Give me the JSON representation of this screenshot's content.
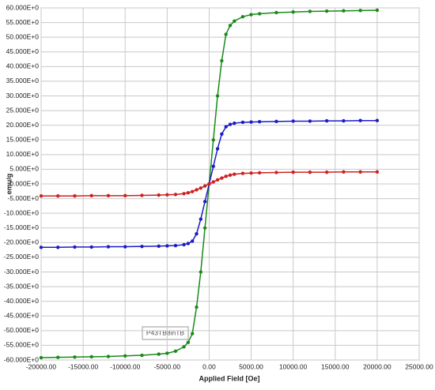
{
  "chart_data": {
    "type": "line",
    "xlabel": "Applied Field [Oe]",
    "ylabel": "emu/g",
    "annotation": "P43TB8inTB",
    "x": [
      -20000,
      -18000,
      -16000,
      -14000,
      -12000,
      -10000,
      -8000,
      -6000,
      -5000,
      -4000,
      -3000,
      -2500,
      -2000,
      -1500,
      -1000,
      -500,
      0,
      500,
      1000,
      1500,
      2000,
      2500,
      3000,
      4000,
      5000,
      6000,
      8000,
      10000,
      12000,
      14000,
      16000,
      18000,
      20000
    ],
    "series": [
      {
        "name": "green",
        "color": "#1a8a1a",
        "values": [
          -59.2,
          -59.1,
          -59.0,
          -58.9,
          -58.8,
          -58.6,
          -58.4,
          -58.0,
          -57.7,
          -57.0,
          -55.5,
          -54,
          -51,
          -42,
          -30,
          -15,
          0,
          15,
          30,
          42,
          51,
          54,
          55.5,
          57.0,
          57.7,
          58.0,
          58.4,
          58.6,
          58.8,
          58.9,
          59.0,
          59.1,
          59.2
        ]
      },
      {
        "name": "blue",
        "color": "#1c1cc8",
        "values": [
          -21.6,
          -21.6,
          -21.5,
          -21.5,
          -21.4,
          -21.4,
          -21.3,
          -21.2,
          -21.1,
          -21.0,
          -20.7,
          -20.3,
          -19.5,
          -17,
          -12,
          -6,
          0,
          6,
          12,
          17,
          19.5,
          20.3,
          20.7,
          21.0,
          21.1,
          21.2,
          21.3,
          21.4,
          21.4,
          21.5,
          21.5,
          21.6,
          21.6
        ]
      },
      {
        "name": "red",
        "color": "#d02020",
        "values": [
          -4.1,
          -4.1,
          -4.1,
          -4.0,
          -4.0,
          -4.0,
          -3.9,
          -3.8,
          -3.7,
          -3.6,
          -3.3,
          -3.0,
          -2.6,
          -2.0,
          -1.4,
          -0.7,
          0,
          0.7,
          1.4,
          2.0,
          2.6,
          3.0,
          3.3,
          3.6,
          3.7,
          3.8,
          3.9,
          4.0,
          4.0,
          4.0,
          4.1,
          4.1,
          4.1
        ]
      }
    ],
    "xlim": [
      -20000,
      25000
    ],
    "xticks": [
      {
        "value": -20000,
        "label": "-20000.00"
      },
      {
        "value": -15000,
        "label": "-15000.00"
      },
      {
        "value": -10000,
        "label": "-10000.00"
      },
      {
        "value": -5000,
        "label": "-5000.00"
      },
      {
        "value": 0,
        "label": "0.00"
      },
      {
        "value": 5000,
        "label": "5000.00"
      },
      {
        "value": 10000,
        "label": "10000.00"
      },
      {
        "value": 15000,
        "label": "15000.00"
      },
      {
        "value": 20000,
        "label": "20000.00"
      },
      {
        "value": 25000,
        "label": "25000.00"
      }
    ],
    "ylim": [
      -60,
      60
    ],
    "yticks": [
      {
        "value": 60,
        "label": "60.000E+0"
      },
      {
        "value": 55,
        "label": "55.000E+0"
      },
      {
        "value": 50,
        "label": "50.000E+0"
      },
      {
        "value": 45,
        "label": "45.000E+0"
      },
      {
        "value": 40,
        "label": "40.000E+0"
      },
      {
        "value": 35,
        "label": "35.000E+0"
      },
      {
        "value": 30,
        "label": "30.000E+0"
      },
      {
        "value": 25,
        "label": "25.000E+0"
      },
      {
        "value": 20,
        "label": "20.000E+0"
      },
      {
        "value": 15,
        "label": "15.000E+0"
      },
      {
        "value": 10,
        "label": "10.000E+0"
      },
      {
        "value": 5,
        "label": "5.000E+0"
      },
      {
        "value": 0,
        "label": "0.000E+0"
      },
      {
        "value": -5,
        "label": "-5.000E+0"
      },
      {
        "value": -10,
        "label": "-10.000E+0"
      },
      {
        "value": -15,
        "label": "-15.000E+0"
      },
      {
        "value": -20,
        "label": "-20.000E+0"
      },
      {
        "value": -25,
        "label": "-25.000E+0"
      },
      {
        "value": -30,
        "label": "-30.000E+0"
      },
      {
        "value": -35,
        "label": "-35.000E+0"
      },
      {
        "value": -40,
        "label": "-40.000E+0"
      },
      {
        "value": -45,
        "label": "-45.000E+0"
      },
      {
        "value": -50,
        "label": "-50.000E+0"
      },
      {
        "value": -55,
        "label": "-55.000E+0"
      },
      {
        "value": -60,
        "label": "-60.000E+0"
      }
    ],
    "grid": true
  }
}
